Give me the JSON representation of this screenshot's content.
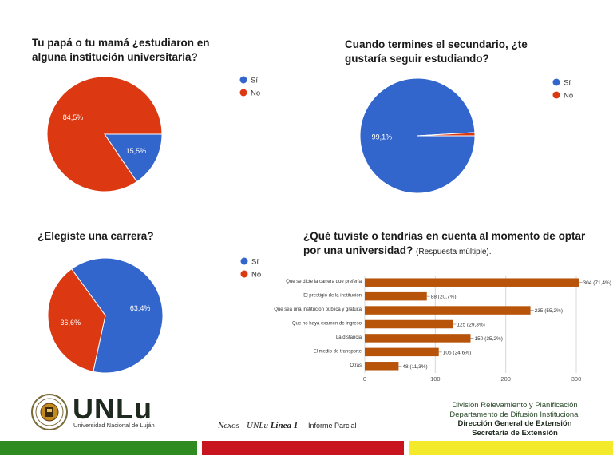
{
  "chart_data": [
    {
      "type": "pie",
      "title": "Tu papá o tu mamá ¿estudiaron en alguna institución universitaria?",
      "title_lines": [
        "Tu papá o tu mamá ¿estudiaron en",
        "alguna institución universitaria?"
      ],
      "slices": [
        {
          "label": "Sí",
          "value": 15.5,
          "display": "15,5%",
          "color": "#3366cc"
        },
        {
          "label": "No",
          "value": 84.5,
          "display": "84,5%",
          "color": "#dc3912"
        }
      ],
      "legend": "right"
    },
    {
      "type": "pie",
      "title": "Cuando termines el secundario, ¿te gustaría seguir estudiando?",
      "title_lines": [
        "Cuando termines el secundario, ¿te",
        "gustaría seguir estudiando?"
      ],
      "slices": [
        {
          "label": "Sí",
          "value": 99.1,
          "display": "99,1%",
          "color": "#3366cc"
        },
        {
          "label": "No",
          "value": 0.9,
          "display": "",
          "color": "#dc3912"
        }
      ],
      "legend": "right"
    },
    {
      "type": "pie",
      "title": "¿Elegiste una carrera?",
      "title_lines": [
        "¿Elegiste una carrera?"
      ],
      "slices": [
        {
          "label": "Sí",
          "value": 63.4,
          "display": "63,4%",
          "color": "#3366cc"
        },
        {
          "label": "No",
          "value": 36.6,
          "display": "36,6%",
          "color": "#dc3912"
        }
      ],
      "legend": "right"
    },
    {
      "type": "bar",
      "orientation": "horizontal",
      "title_lines": [
        "¿Qué tuviste o tendrías en cuenta al momento de optar",
        "por una universidad?"
      ],
      "subtitle": "(Respuesta múltiple).",
      "categories": [
        "Que se dicte la carrera que prefería",
        "El prestigio de la institución",
        "Que sea una institución pública y gratuita",
        "Que no haya examen de ingreso",
        "La distancia",
        "El medio de transporte",
        "Otras"
      ],
      "values": [
        304,
        88,
        235,
        125,
        150,
        105,
        48
      ],
      "labels": [
        "304 (71,4%)",
        "88 (20,7%)",
        "235 (55,2%)",
        "125 (29,3%)",
        "150 (35,2%)",
        "105 (24,6%)",
        "48 (11,3%)"
      ],
      "xlim": [
        0,
        300
      ],
      "xticks": [
        0,
        100,
        200,
        300
      ],
      "color": "#b8530a",
      "grid": true
    }
  ],
  "footer": {
    "logo_name": "UNLu",
    "logo_caption": "Universidad Nacional de Luján",
    "center_prefix": "Nexos - UNLu",
    "center_bold": "Línea 1",
    "center_suffix": "Informe Parcial",
    "right_lines": [
      "División Relevamiento y Planificación",
      "Departamento de Difusión Institucional"
    ],
    "right_bold_lines": [
      "Dirección General de Extensión",
      "Secretaría de Extensión"
    ],
    "bar_colors": [
      "#2e8b1f",
      "#c8141e",
      "#f2ea2a"
    ]
  }
}
